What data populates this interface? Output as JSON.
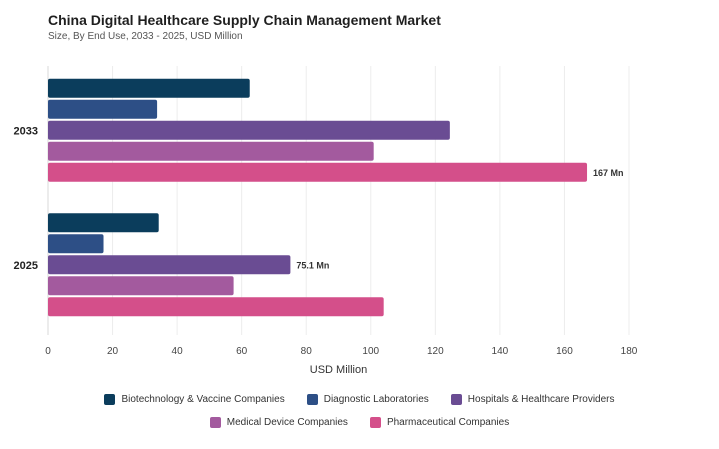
{
  "header": {
    "title": "China Digital Healthcare Supply Chain Management Market",
    "subtitle": "Size, By End Use, 2033 - 2025, USD Million"
  },
  "chart_data": {
    "type": "bar",
    "orientation": "horizontal",
    "categories": [
      "2033",
      "2025"
    ],
    "series": [
      {
        "name": "Biotechnology & Vaccine Companies",
        "color": "#0b3d5c",
        "values": [
          62.5,
          34.3
        ]
      },
      {
        "name": "Diagnostic Laboratories",
        "color": "#2d4f86",
        "values": [
          33.8,
          17.2
        ]
      },
      {
        "name": "Hospitals & Healthcare Providers",
        "color": "#6a4c93",
        "values": [
          124.5,
          75.1
        ]
      },
      {
        "name": "Medical Device Companies",
        "color": "#a35a9e",
        "values": [
          100.9,
          57.5
        ]
      },
      {
        "name": "Pharmaceutical Companies",
        "color": "#d44f8a",
        "values": [
          167,
          104
        ]
      }
    ],
    "annotations": [
      {
        "category": "2033",
        "series": "Pharmaceutical Companies",
        "text": "167 Mn"
      },
      {
        "category": "2025",
        "series": "Hospitals & Healthcare Providers",
        "text": "75.1 Mn"
      }
    ],
    "xlabel": "USD Million",
    "xlim": [
      0,
      180
    ],
    "xticks": [
      0,
      20,
      40,
      60,
      80,
      100,
      120,
      140,
      160,
      180
    ],
    "grid": true,
    "legend_position": "bottom"
  }
}
